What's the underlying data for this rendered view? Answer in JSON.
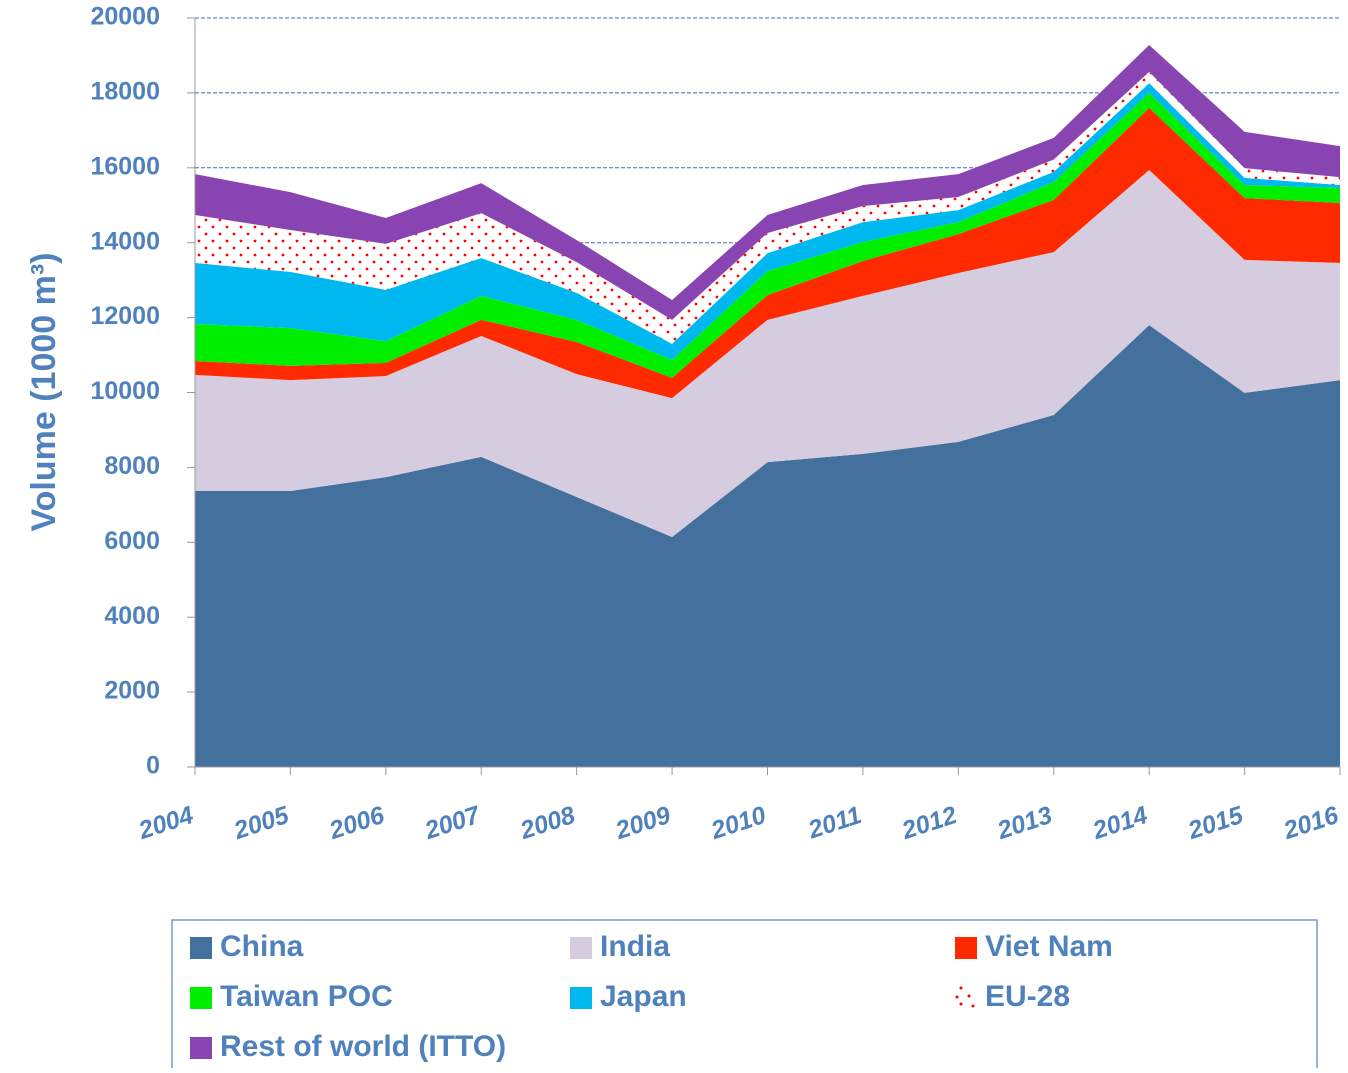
{
  "chart_data": {
    "type": "stacked_area",
    "y_label": "Volume (1000 m³)",
    "categories": [
      "2004",
      "2005",
      "2006",
      "2007",
      "2008",
      "2009",
      "2010",
      "2011",
      "2012",
      "2013",
      "2014",
      "2015",
      "2016"
    ],
    "series": [
      {
        "name": "China",
        "color": "#44709d",
        "values": [
          7370,
          7370,
          7740,
          8280,
          7210,
          6140,
          8140,
          8360,
          8680,
          9400,
          11800,
          9990,
          10330
        ]
      },
      {
        "name": "India",
        "color": "#d6cce0",
        "values": [
          3100,
          2960,
          2700,
          3230,
          3280,
          3710,
          3800,
          4220,
          4510,
          4350,
          4140,
          3550,
          3130
        ]
      },
      {
        "name": "Viet Nam",
        "color": "#ff2a00",
        "values": [
          370,
          380,
          350,
          430,
          860,
          540,
          660,
          930,
          1040,
          1390,
          1660,
          1650,
          1600
        ]
      },
      {
        "name": "Taiwan POC",
        "color": "#00ee00",
        "values": [
          990,
          1010,
          580,
          640,
          590,
          480,
          640,
          510,
          320,
          480,
          400,
          350,
          400
        ]
      },
      {
        "name": "Japan",
        "color": "#00b8f0",
        "values": [
          1630,
          1500,
          1370,
          1010,
          720,
          430,
          480,
          530,
          320,
          270,
          260,
          190,
          80
        ]
      },
      {
        "name": "EU-28",
        "color": "#ff0000",
        "fill": "dotted",
        "values": [
          1280,
          1120,
          1230,
          1200,
          820,
          640,
          540,
          430,
          350,
          330,
          300,
          260,
          210
        ]
      },
      {
        "name": "Rest of world (ITTO)",
        "color": "#8844b0",
        "values": [
          1090,
          1010,
          690,
          800,
          590,
          530,
          480,
          560,
          610,
          580,
          720,
          970,
          830
        ]
      }
    ],
    "ylim": [
      0,
      20000
    ],
    "yticks": [
      0,
      2000,
      4000,
      6000,
      8000,
      10000,
      12000,
      14000,
      16000,
      18000,
      20000
    ],
    "grid": true,
    "legend": "bottom"
  }
}
